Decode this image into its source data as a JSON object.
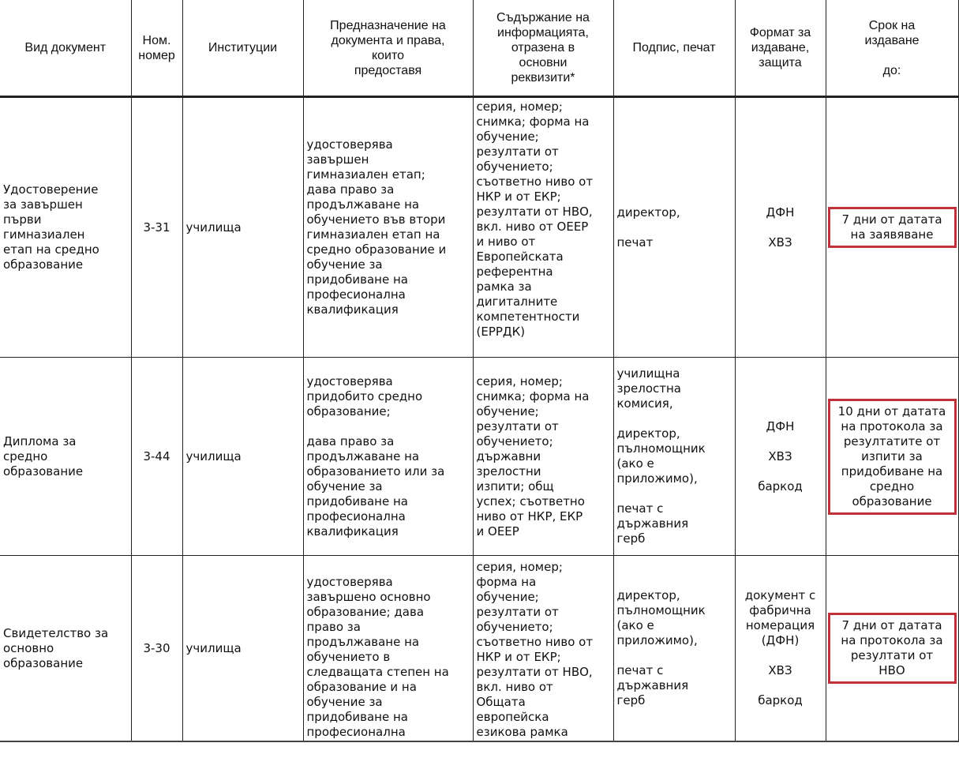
{
  "headers": [
    "Вид документ",
    "Ном.\nномер",
    "Институции",
    "Предназначение на\nдокумента и права,\nкоито\nпредоставя",
    "Съдържание на\nинформацията,\nотразена в\nосновни\nреквизити*",
    "Подпис, печат",
    "Формат за\nиздаване,\nзащита",
    "Срок на\nиздаване\n\nдо:"
  ],
  "rows": [
    {
      "doc": "Удостоверение\nза завършен\nпърви\nгимназиален\nетап на средно\nобразование",
      "num": "3-31",
      "inst": "училища",
      "purpose": "удостоверява\nзавършен\nгимназиален етап;\nдава право за\nпродължаване на\nобучението във втори\nгимназиален етап на\nсредно образование и\nобучение за\nпридобиване на\nпрофесионална\nквалификация",
      "content": "серия, номер;\nснимка; форма на\nобучение;\nрезултати от\nобучението;\nсъответно ниво от\nНКР и от ЕКР;\nрезултати от НВО,\nвкл. ниво от ОЕЕР\nи ниво от\nЕвропейската\nреферентна\nрамка за\nдигиталните\nкомпетентности\n(ЕРРДК)",
      "sign": "директор,\n\nпечат",
      "format": "ДФН\n\nХВЗ",
      "deadline": "7 дни от датата\nна заявяване"
    },
    {
      "doc": "Диплома за\nсредно\nобразование",
      "num": "3-44",
      "inst": "училища",
      "purpose": "удостоверява\nпридобито средно\nобразование;\n\nдава право за\nпродължаване на\nобразованието или за\nобучение за\nпридобиване на\nпрофесионална\nквалификация",
      "content": "серия, номер;\nснимка; форма на\nобучение;\nрезултати от\nобучението;\nдържавни\nзрелостни\nизпити; общ\nуспех; съответно\nниво от НКР, ЕКР\nи ОЕЕР",
      "sign": "училищна\nзрелостна\nкомисия,\n\nдиректор,\nпълномощник\n(ако е\nприложимо),\n\nпечат с\nдържавния\nгерб",
      "format": "ДФН\n\nХВЗ\n\nбаркод",
      "deadline": "10 дни от датата\nна протокола за\nрезултатите от\nизпити за\nпридобиване на\nсредно\nобразование"
    },
    {
      "doc": "Свидетелство за\nосновно\nобразование",
      "num": "3-30",
      "inst": "училища",
      "purpose": "удостоверява\nзавършено основно\nобразование; дава\nправо за\nпродължаване на\nобучението в\nследващата степен на\nобразование и на\nобучение за\nпридобиване на\nпрофесионална",
      "content": "серия, номер;\nформа на\nобучение;\nрезултати от\nобучението;\nсъответно ниво от\nНКР и от ЕКР;\nрезултати от НВО,\nвкл. ниво от\nОбщата\nевропейска\nезикова рамка",
      "sign": "директор,\nпълномощник\n(ако е\nприложимо),\n\nпечат с\nдържавния\nгерб",
      "format": "документ с\nфабрична\nномерация\n(ДФН)\n\nХВЗ\n\nбаркод",
      "deadline": "7 дни от датата\nна протокола за\nрезултати от\nНВО"
    }
  ],
  "colors": {
    "highlight_box": "#c0313a",
    "border": "#222222"
  }
}
